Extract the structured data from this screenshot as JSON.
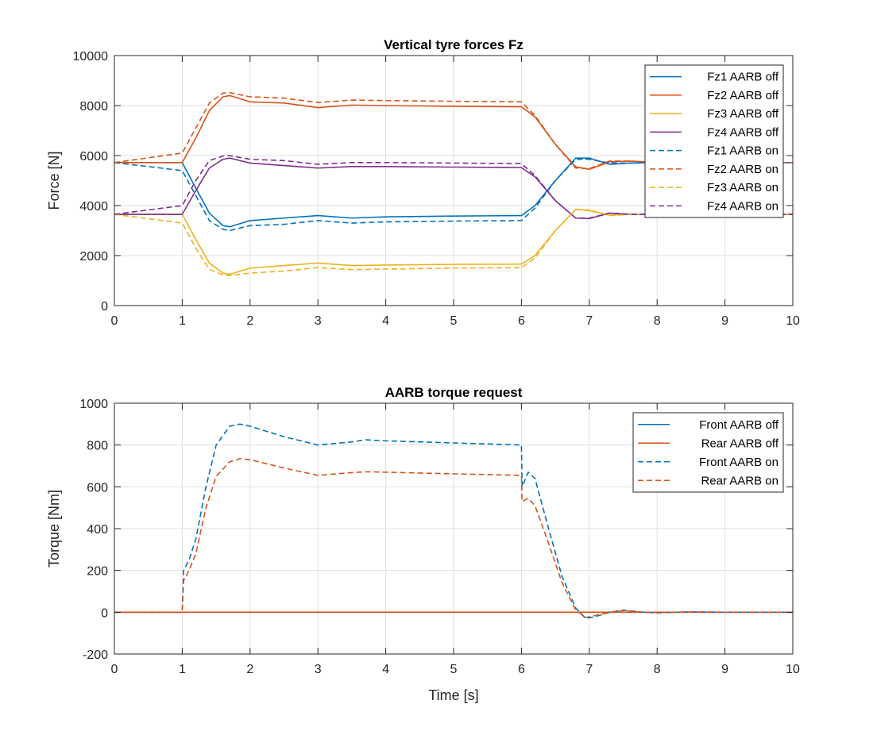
{
  "chart_data": [
    {
      "type": "line",
      "title": "Vertical tyre forces Fz",
      "xlabel": "",
      "ylabel": "Force [N]",
      "xlim": [
        0,
        10
      ],
      "ylim": [
        0,
        10000
      ],
      "xticks": [
        0,
        1,
        2,
        3,
        4,
        5,
        6,
        7,
        8,
        9,
        10
      ],
      "yticks": [
        0,
        2000,
        4000,
        6000,
        8000,
        10000
      ],
      "grid": true,
      "legend_position": "top-right",
      "series": [
        {
          "name": "Fz1 AARB off",
          "color": "#0072BD",
          "dash": false,
          "x": [
            0,
            1,
            1.2,
            1.4,
            1.6,
            1.7,
            2,
            2.5,
            3,
            3.5,
            4,
            5,
            6,
            6.2,
            6.5,
            6.8,
            7,
            7.3,
            7.6,
            8,
            9,
            10
          ],
          "y": [
            5720,
            5720,
            4700,
            3700,
            3200,
            3150,
            3400,
            3500,
            3600,
            3500,
            3550,
            3580,
            3600,
            4000,
            5000,
            5900,
            5900,
            5650,
            5700,
            5720,
            5720,
            5720
          ]
        },
        {
          "name": "Fz2 AARB off",
          "color": "#D95319",
          "dash": false,
          "x": [
            0,
            1,
            1.2,
            1.4,
            1.6,
            1.7,
            2,
            2.5,
            3,
            3.5,
            4,
            5,
            6,
            6.2,
            6.5,
            6.8,
            7,
            7.3,
            7.6,
            8,
            9,
            10
          ],
          "y": [
            5720,
            5720,
            6700,
            7800,
            8350,
            8400,
            8150,
            8100,
            7920,
            8020,
            8000,
            7970,
            7950,
            7550,
            6450,
            5550,
            5450,
            5750,
            5780,
            5720,
            5720,
            5720
          ]
        },
        {
          "name": "Fz3 AARB off",
          "color": "#EDB120",
          "dash": false,
          "x": [
            0,
            1,
            1.2,
            1.4,
            1.6,
            1.7,
            2,
            2.5,
            3,
            3.5,
            4,
            5,
            6,
            6.2,
            6.5,
            6.8,
            7,
            7.3,
            7.6,
            8,
            9,
            10
          ],
          "y": [
            3650,
            3650,
            2650,
            1700,
            1300,
            1250,
            1500,
            1600,
            1700,
            1600,
            1620,
            1650,
            1660,
            2000,
            3000,
            3850,
            3800,
            3620,
            3650,
            3650,
            3650,
            3650
          ]
        },
        {
          "name": "Fz4 AARB off",
          "color": "#7E2F8E",
          "dash": false,
          "x": [
            0,
            1,
            1.2,
            1.4,
            1.6,
            1.7,
            2,
            2.5,
            3,
            3.5,
            4,
            5,
            6,
            6.2,
            6.5,
            6.8,
            7,
            7.3,
            7.6,
            8,
            9,
            10
          ],
          "y": [
            3650,
            3650,
            4600,
            5500,
            5850,
            5900,
            5700,
            5600,
            5500,
            5560,
            5560,
            5540,
            5520,
            5150,
            4200,
            3500,
            3480,
            3700,
            3650,
            3650,
            3650,
            3650
          ]
        },
        {
          "name": "Fz1 AARB on",
          "color": "#0072BD",
          "dash": true,
          "x": [
            0,
            1,
            1.2,
            1.4,
            1.6,
            1.7,
            2,
            2.5,
            3,
            3.5,
            4,
            5,
            6,
            6.2,
            6.5,
            6.8,
            7,
            7.3,
            7.6,
            8,
            9,
            10
          ],
          "y": [
            5720,
            5400,
            4400,
            3400,
            3050,
            3000,
            3200,
            3250,
            3400,
            3300,
            3350,
            3380,
            3400,
            3900,
            5000,
            5850,
            5850,
            5700,
            5700,
            5720,
            5720,
            5720
          ]
        },
        {
          "name": "Fz2 AARB on",
          "color": "#D95319",
          "dash": true,
          "x": [
            0,
            1,
            1.2,
            1.4,
            1.6,
            1.7,
            2,
            2.5,
            3,
            3.5,
            4,
            5,
            6,
            6.2,
            6.5,
            6.8,
            7,
            7.3,
            7.6,
            8,
            9,
            10
          ],
          "y": [
            5720,
            6100,
            7100,
            8100,
            8500,
            8520,
            8350,
            8300,
            8120,
            8220,
            8200,
            8170,
            8150,
            7600,
            6450,
            5500,
            5480,
            5780,
            5780,
            5720,
            5720,
            5720
          ]
        },
        {
          "name": "Fz3 AARB on",
          "color": "#EDB120",
          "dash": true,
          "x": [
            0,
            1,
            1.2,
            1.4,
            1.6,
            1.7,
            2,
            2.5,
            3,
            3.5,
            4,
            5,
            6,
            6.2,
            6.5,
            6.8,
            7,
            7.3,
            7.6,
            8,
            9,
            10
          ],
          "y": [
            3650,
            3300,
            2300,
            1450,
            1230,
            1200,
            1300,
            1380,
            1520,
            1440,
            1460,
            1500,
            1520,
            1900,
            3000,
            3850,
            3820,
            3600,
            3650,
            3650,
            3650,
            3650
          ]
        },
        {
          "name": "Fz4 AARB on",
          "color": "#7E2F8E",
          "dash": true,
          "x": [
            0,
            1,
            1.2,
            1.4,
            1.6,
            1.7,
            2,
            2.5,
            3,
            3.5,
            4,
            5,
            6,
            6.2,
            6.5,
            6.8,
            7,
            7.3,
            7.6,
            8,
            9,
            10
          ],
          "y": [
            3650,
            4000,
            5000,
            5800,
            5980,
            6000,
            5850,
            5800,
            5650,
            5720,
            5720,
            5700,
            5680,
            5200,
            4200,
            3500,
            3500,
            3700,
            3650,
            3650,
            3650,
            3650
          ]
        }
      ]
    },
    {
      "type": "line",
      "title": "AARB torque request",
      "xlabel": "Time [s]",
      "ylabel": "Torque [Nm]",
      "xlim": [
        0,
        10
      ],
      "ylim": [
        -200,
        1000
      ],
      "xticks": [
        0,
        1,
        2,
        3,
        4,
        5,
        6,
        7,
        8,
        9,
        10
      ],
      "yticks": [
        -200,
        0,
        200,
        400,
        600,
        800,
        1000
      ],
      "grid": true,
      "legend_position": "top-right",
      "series": [
        {
          "name": "Front AARB off",
          "color": "#0072BD",
          "dash": false,
          "x": [
            0,
            10
          ],
          "y": [
            0,
            0
          ]
        },
        {
          "name": "Rear AARB off",
          "color": "#D95319",
          "dash": false,
          "x": [
            0,
            10
          ],
          "y": [
            0,
            0
          ]
        },
        {
          "name": "Front AARB on",
          "color": "#0072BD",
          "dash": true,
          "x": [
            0,
            1,
            1.02,
            1.1,
            1.2,
            1.35,
            1.5,
            1.7,
            1.85,
            2,
            2.5,
            3,
            3.5,
            3.7,
            4,
            5,
            6,
            6.01,
            6.1,
            6.2,
            6.4,
            6.6,
            6.8,
            6.95,
            7.1,
            7.3,
            7.5,
            7.8,
            8,
            8.5,
            9,
            10
          ],
          "y": [
            0,
            0,
            200,
            250,
            350,
            600,
            800,
            890,
            900,
            890,
            840,
            800,
            815,
            825,
            820,
            810,
            800,
            600,
            670,
            640,
            400,
            170,
            20,
            -30,
            -20,
            0,
            10,
            0,
            -3,
            2,
            0,
            0
          ]
        },
        {
          "name": "Rear AARB on",
          "color": "#D95319",
          "dash": true,
          "x": [
            0,
            1,
            1.02,
            1.1,
            1.2,
            1.35,
            1.5,
            1.7,
            1.85,
            2,
            2.5,
            3,
            3.5,
            3.7,
            4,
            5,
            6,
            6.01,
            6.1,
            6.2,
            6.4,
            6.6,
            6.8,
            6.95,
            7.1,
            7.3,
            7.5,
            7.8,
            8,
            8.5,
            9,
            10
          ],
          "y": [
            0,
            0,
            150,
            200,
            280,
            500,
            650,
            720,
            735,
            730,
            690,
            655,
            668,
            672,
            670,
            662,
            655,
            530,
            545,
            510,
            330,
            140,
            10,
            -25,
            -15,
            0,
            8,
            0,
            -2,
            2,
            0,
            0
          ]
        }
      ]
    }
  ]
}
